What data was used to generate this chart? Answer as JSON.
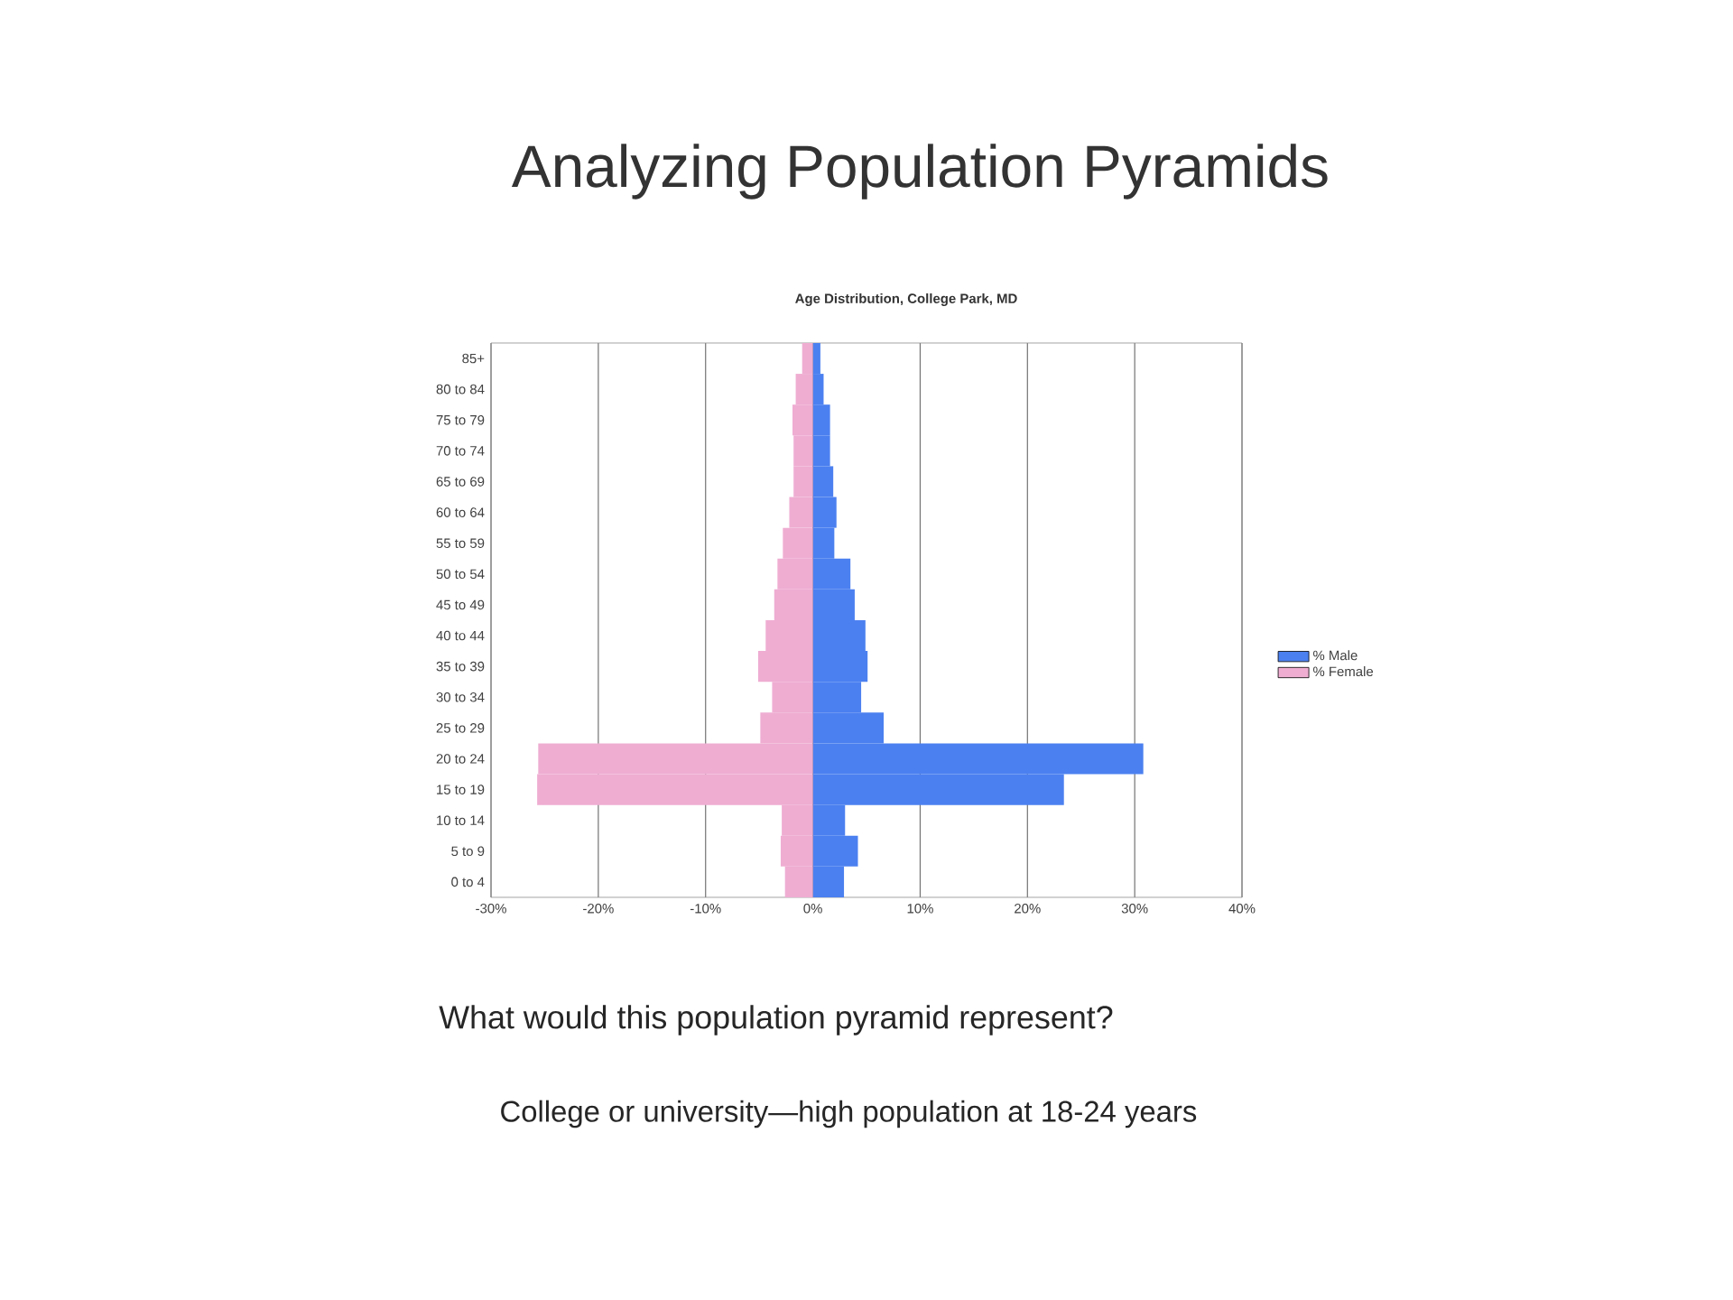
{
  "chart_data": {
    "type": "bar",
    "orientation": "horizontal",
    "title": "Analyzing Population Pyramids",
    "subtitle": "Age Distribution, College Park, MD",
    "categories": [
      "85+",
      "80 to 84",
      "75 to 79",
      "70 to 74",
      "65 to 69",
      "60 to 64",
      "55 to 59",
      "50 to 54",
      "45 to 49",
      "40 to 44",
      "35 to 39",
      "30 to 34",
      "25 to 29",
      "20 to 24",
      "15 to 19",
      "10 to 14",
      "5 to 9",
      "0 to 4"
    ],
    "series": [
      {
        "name": "% Male",
        "color": "#4b80f0",
        "values": [
          0.7,
          1.0,
          1.6,
          1.6,
          1.9,
          2.2,
          2.0,
          3.5,
          3.9,
          4.9,
          5.1,
          4.5,
          6.6,
          30.8,
          23.4,
          3.0,
          4.2,
          2.9
        ]
      },
      {
        "name": "% Female",
        "color": "#efadd2",
        "values": [
          -1.0,
          -1.6,
          -1.9,
          -1.8,
          -1.8,
          -2.2,
          -2.8,
          -3.3,
          -3.6,
          -4.4,
          -5.1,
          -3.8,
          -4.9,
          -25.6,
          -25.7,
          -2.9,
          -3.0,
          -2.6
        ]
      }
    ],
    "xlim": [
      -30,
      40
    ],
    "xticks": [
      {
        "value": -30,
        "label": "-30%"
      },
      {
        "value": -20,
        "label": "-20%"
      },
      {
        "value": -10,
        "label": "-10%"
      },
      {
        "value": 0,
        "label": "0%"
      },
      {
        "value": 10,
        "label": "10%"
      },
      {
        "value": 20,
        "label": "20%"
      },
      {
        "value": 30,
        "label": "30%"
      },
      {
        "value": 40,
        "label": "40%"
      }
    ],
    "grid": "x",
    "legend": "right",
    "stacked": true,
    "annotations": [
      "What would this population pyramid represent?",
      "College or university—high population at 18-24 years"
    ]
  }
}
